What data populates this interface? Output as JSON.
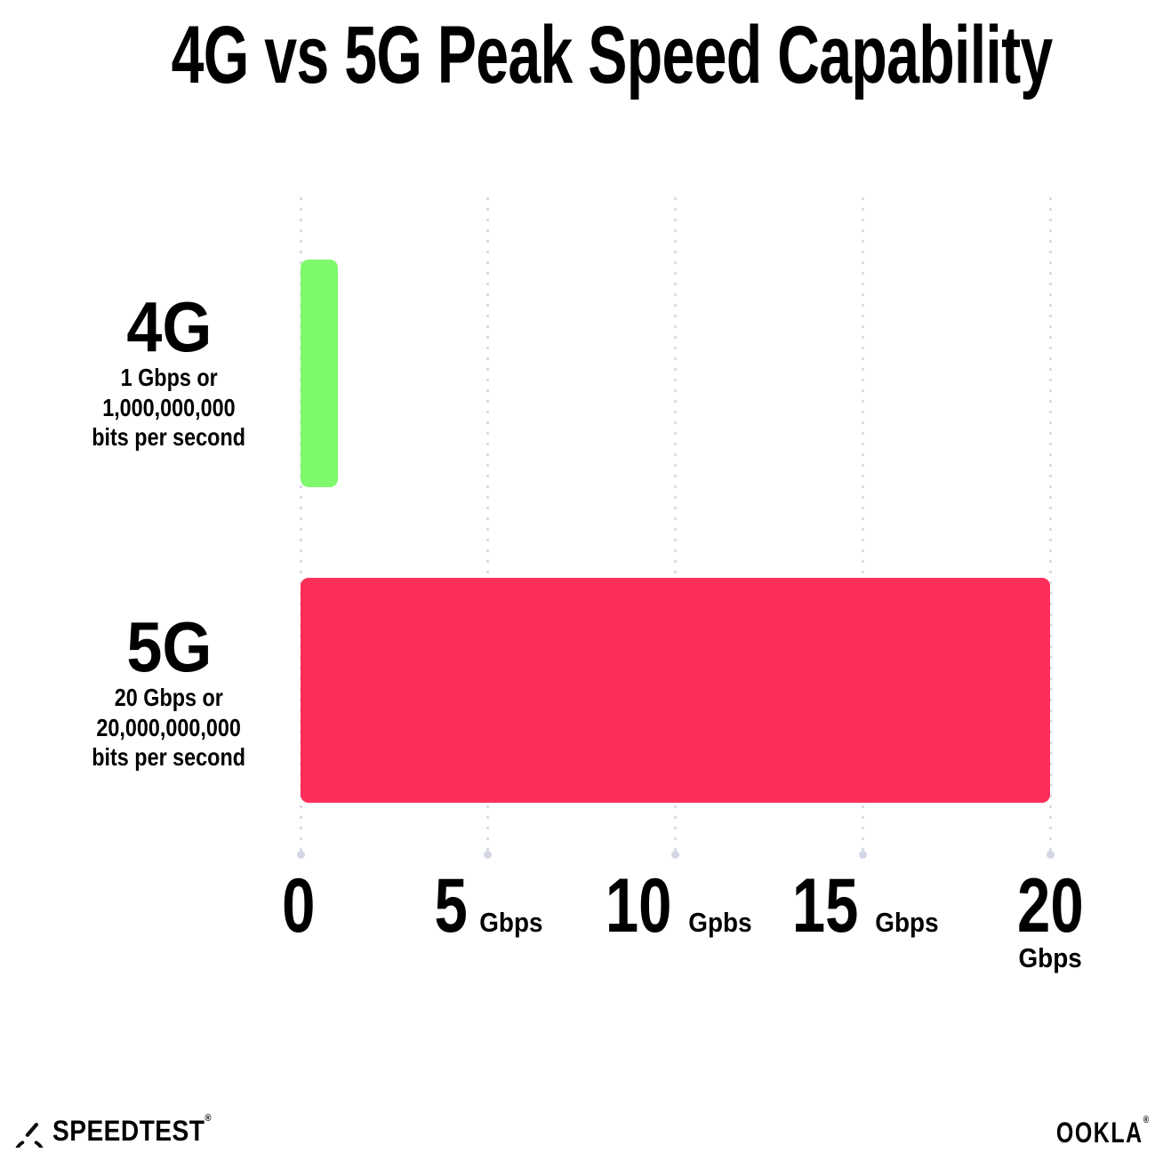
{
  "title": "4G vs 5G Peak Speed Capability",
  "chart_data": {
    "type": "bar",
    "orientation": "horizontal",
    "title": "4G vs 5G Peak Speed Capability",
    "categories": [
      "4G",
      "5G"
    ],
    "values": [
      1,
      20
    ],
    "value_unit": "Gbps",
    "xlim": [
      0,
      20
    ],
    "grid": "vertical dotted gridlines at 0, 5, 10, 15, 20",
    "legend": "none",
    "bar_colors": [
      "#7EF96B",
      "#FD2E5A"
    ],
    "category_sublabels": [
      [
        "1 Gbps or",
        "1,000,000,000",
        "bits per second"
      ],
      [
        "20 Gbps or",
        "20,000,000,000",
        "bits per second"
      ]
    ],
    "x_ticks": [
      {
        "value": "0",
        "unit": ""
      },
      {
        "value": "5",
        "unit": "Gbps"
      },
      {
        "value": "10",
        "unit": "Gpbs"
      },
      {
        "value": "15",
        "unit": "Gbps"
      },
      {
        "value": "20",
        "unit": "Gbps"
      }
    ]
  },
  "footer": {
    "speedtest_label": "SPEEDTEST",
    "speedtest_trademark": "®",
    "ookla_label": "OOKLA",
    "ookla_trademark": "®"
  },
  "colors": {
    "bar_4g": "#7EF96B",
    "bar_5g": "#FD2E5A",
    "gridline": "#D9DCEA",
    "gridline_end_dot": "#D2D6E5",
    "text": "#000000",
    "background": "#FFFFFF"
  }
}
